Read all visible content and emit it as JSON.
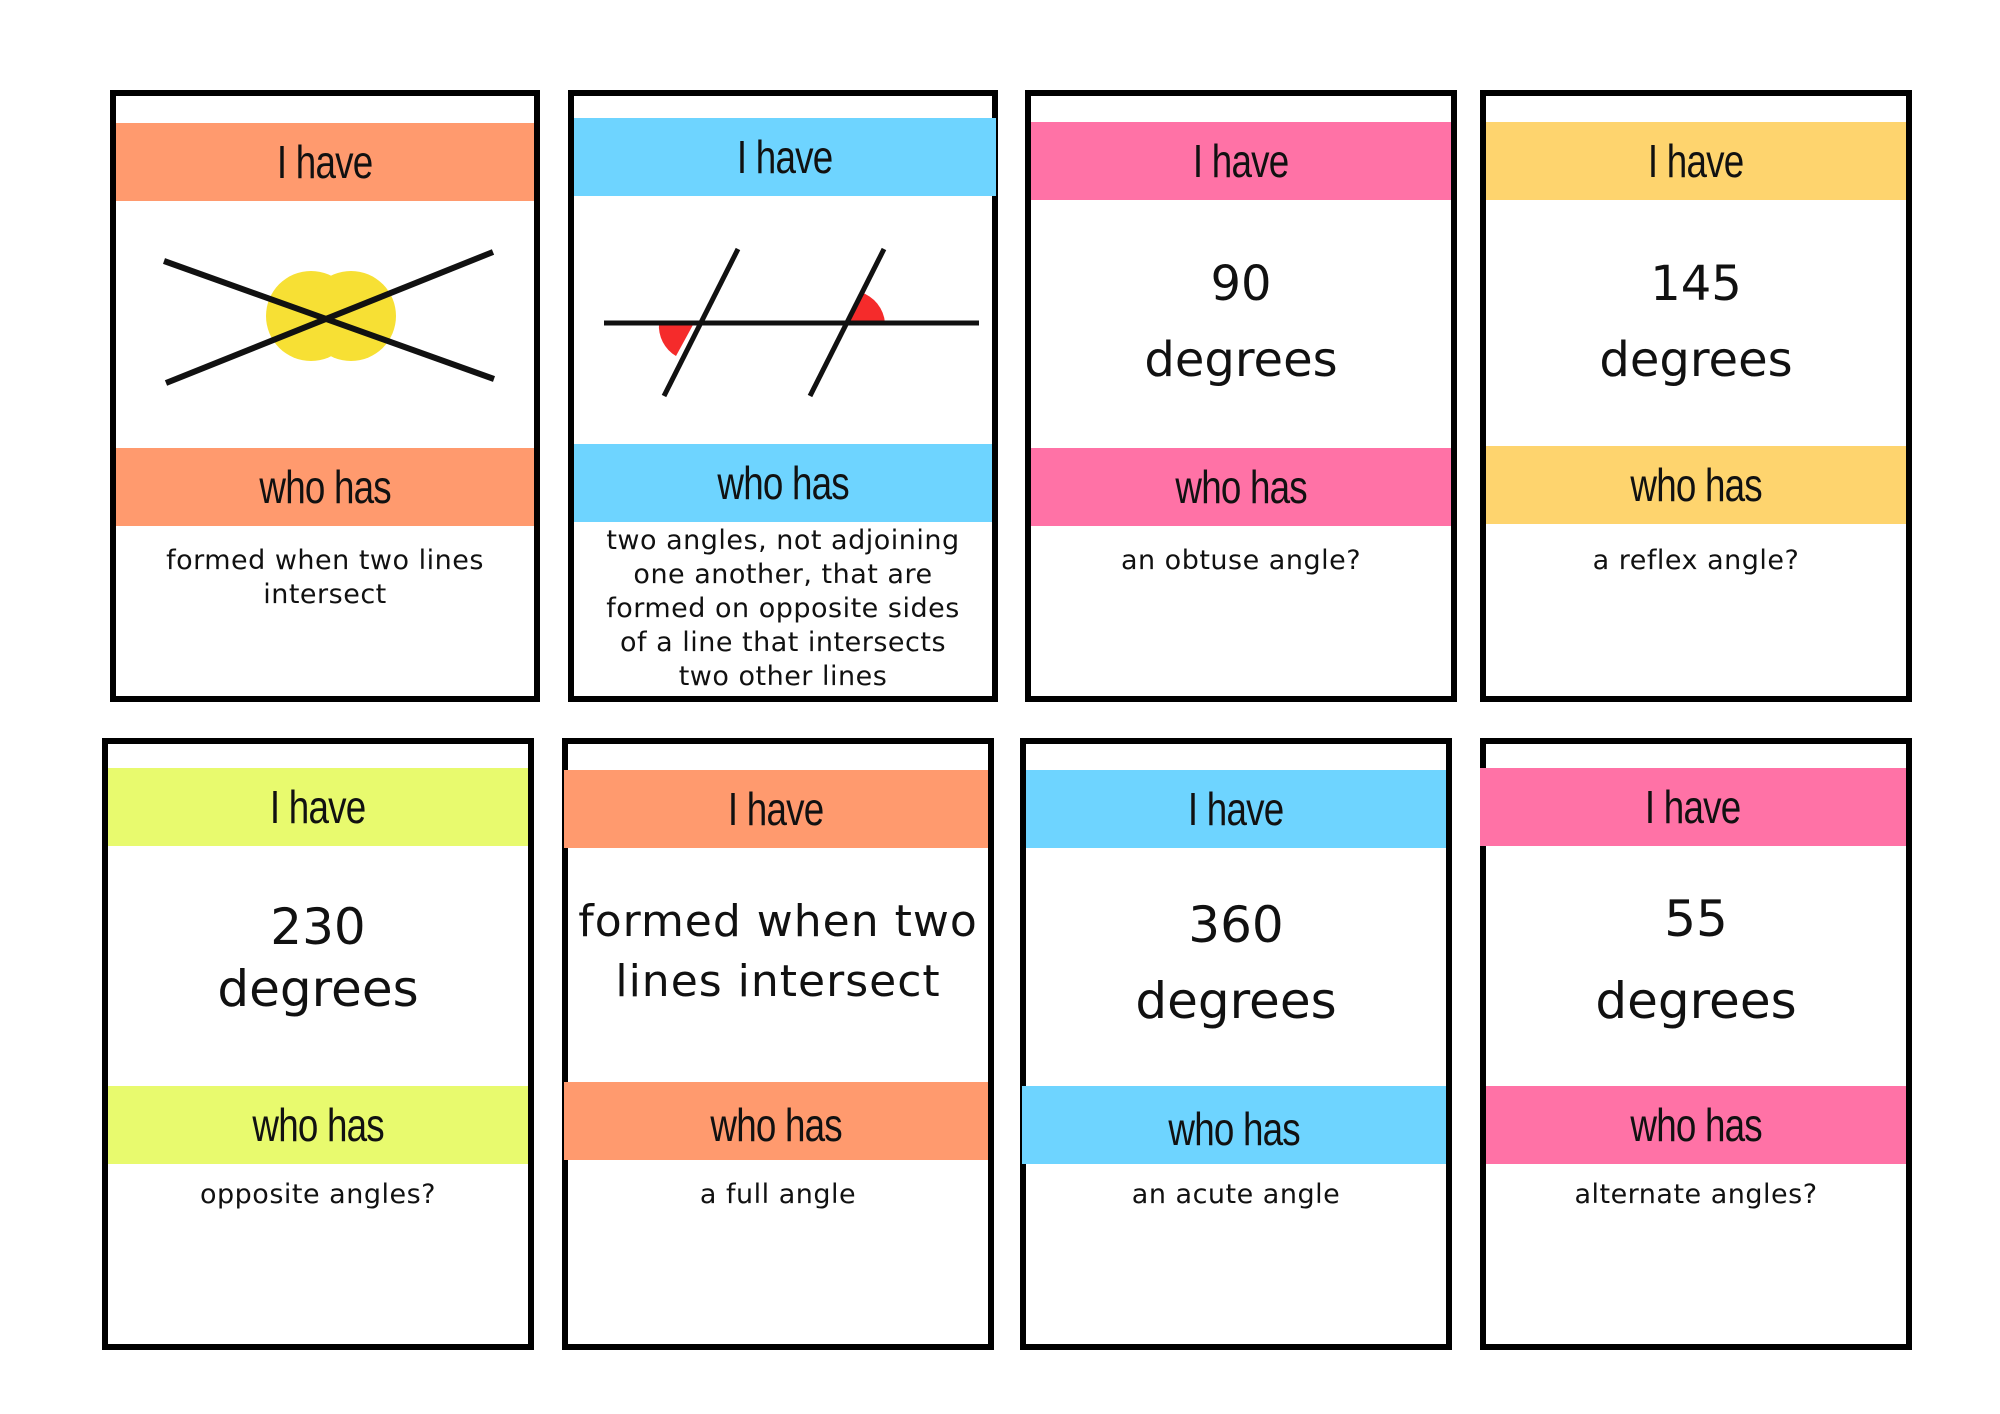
{
  "colors": {
    "orange": "#FF9A6E",
    "blue": "#6ED4FF",
    "pink": "#FF72A6",
    "yellow": "#FED46E",
    "lime": "#E8FA6E",
    "highlight_yellow": "#F7E034",
    "highlight_red": "#F52B2B"
  },
  "cards": [
    {
      "have_label": "I have",
      "answer_icon": "intersecting-lines-opposite-angles-icon",
      "who_label": "who has",
      "clue": "formed when two lines intersect"
    },
    {
      "have_label": "I have",
      "answer_icon": "parallel-transversal-alternate-angles-icon",
      "who_label": "who has",
      "clue": "two angles, not adjoining one another, that are formed on opposite sides of a line that intersects two other lines"
    },
    {
      "have_label": "I have",
      "answer_line1": "90",
      "answer_line2": "degrees",
      "who_label": "who has",
      "clue": "an obtuse angle?"
    },
    {
      "have_label": "I have",
      "answer_line1": "145",
      "answer_line2": "degrees",
      "who_label": "who has",
      "clue": "a reflex angle?"
    },
    {
      "have_label": "I have",
      "answer_line1": "230",
      "answer_line2": "degrees",
      "who_label": "who has",
      "clue": "opposite angles?"
    },
    {
      "have_label": "I have",
      "answer_line1": "formed when two",
      "answer_line2": "lines intersect",
      "who_label": "who has",
      "clue": "a full angle"
    },
    {
      "have_label": "I have",
      "answer_line1": "360",
      "answer_line2": "degrees",
      "who_label": "who has",
      "clue": "an acute angle"
    },
    {
      "have_label": "I have",
      "answer_line1": "55",
      "answer_line2": "degrees",
      "who_label": "who has",
      "clue": "alternate angles?"
    }
  ]
}
